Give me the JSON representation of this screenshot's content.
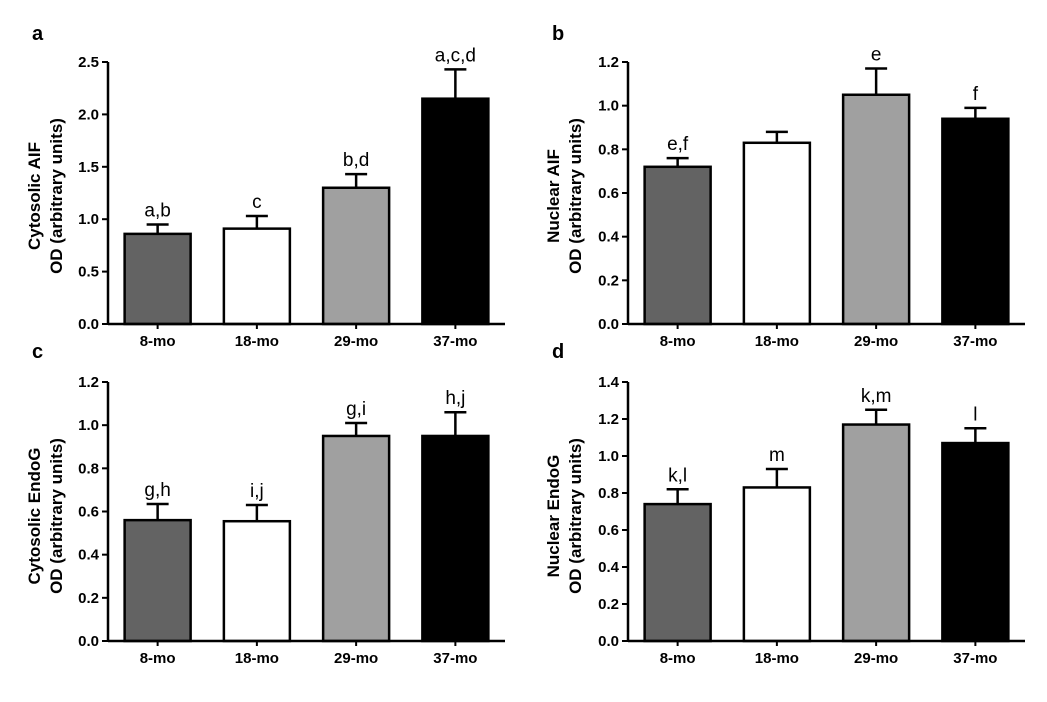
{
  "chart_data": [
    {
      "type": "bar",
      "panel": "a",
      "categories": [
        "8-mo",
        "18-mo",
        "29-mo",
        "37-mo"
      ],
      "values": [
        0.86,
        0.91,
        1.3,
        2.15
      ],
      "errors": [
        0.09,
        0.12,
        0.13,
        0.28
      ],
      "annotations": [
        "a,b",
        "c",
        "b,d",
        "a,c,d"
      ],
      "colors": [
        "#636363",
        "#ffffff",
        "#a0a0a0",
        "#000000"
      ],
      "ylabel_line1": "Cytosolic AIF",
      "ylabel_line2": "OD (arbitrary units)",
      "xlabel": "",
      "ylim": [
        0,
        2.5
      ],
      "yticks": [
        0.0,
        0.5,
        1.0,
        1.5,
        2.0,
        2.5
      ],
      "ytick_labels": [
        "0.0",
        "0.5",
        "1.0",
        "1.5",
        "2.0",
        "2.5"
      ]
    },
    {
      "type": "bar",
      "panel": "b",
      "categories": [
        "8-mo",
        "18-mo",
        "29-mo",
        "37-mo"
      ],
      "values": [
        0.72,
        0.83,
        1.05,
        0.94
      ],
      "errors": [
        0.04,
        0.05,
        0.12,
        0.05
      ],
      "annotations": [
        "e,f",
        "",
        "e",
        "f"
      ],
      "colors": [
        "#636363",
        "#ffffff",
        "#a0a0a0",
        "#000000"
      ],
      "ylabel_line1": "Nuclear AIF",
      "ylabel_line2": "OD (arbitrary units)",
      "xlabel": "",
      "ylim": [
        0,
        1.2
      ],
      "yticks": [
        0.0,
        0.2,
        0.4,
        0.6,
        0.8,
        1.0,
        1.2
      ],
      "ytick_labels": [
        "0.0",
        "0.2",
        "0.4",
        "0.6",
        "0.8",
        "1.0",
        "1.2"
      ]
    },
    {
      "type": "bar",
      "panel": "c",
      "categories": [
        "8-mo",
        "18-mo",
        "29-mo",
        "37-mo"
      ],
      "values": [
        0.56,
        0.555,
        0.95,
        0.95
      ],
      "errors": [
        0.075,
        0.075,
        0.06,
        0.11
      ],
      "annotations": [
        "g,h",
        "i,j",
        "g,i",
        "h,j"
      ],
      "colors": [
        "#636363",
        "#ffffff",
        "#a0a0a0",
        "#000000"
      ],
      "ylabel_line1": "Cytosolic EndoG",
      "ylabel_line2": "OD (arbitrary units)",
      "xlabel": "",
      "ylim": [
        0,
        1.2
      ],
      "yticks": [
        0.0,
        0.2,
        0.4,
        0.6,
        0.8,
        1.0,
        1.2
      ],
      "ytick_labels": [
        "0.0",
        "0.2",
        "0.4",
        "0.6",
        "0.8",
        "1.0",
        "1.2"
      ]
    },
    {
      "type": "bar",
      "panel": "d",
      "categories": [
        "8-mo",
        "18-mo",
        "29-mo",
        "37-mo"
      ],
      "values": [
        0.74,
        0.83,
        1.17,
        1.07
      ],
      "errors": [
        0.08,
        0.1,
        0.08,
        0.08
      ],
      "annotations": [
        "k,l",
        "m",
        "k,m",
        "l"
      ],
      "colors": [
        "#636363",
        "#ffffff",
        "#a0a0a0",
        "#000000"
      ],
      "ylabel_line1": "Nuclear EndoG",
      "ylabel_line2": "OD (arbitrary units)",
      "xlabel": "",
      "ylim": [
        0,
        1.4
      ],
      "yticks": [
        0.0,
        0.2,
        0.4,
        0.6,
        0.8,
        1.0,
        1.2,
        1.4
      ],
      "ytick_labels": [
        "0.0",
        "0.2",
        "0.4",
        "0.6",
        "0.8",
        "1.0",
        "1.2",
        "1.4"
      ]
    }
  ]
}
